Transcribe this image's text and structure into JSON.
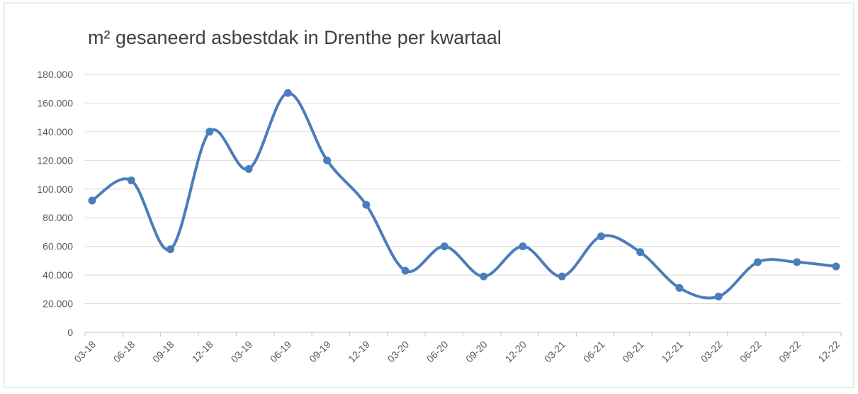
{
  "chart_data": {
    "type": "line",
    "title": "m² gesaneerd asbestdak in Drenthe per kwartaal",
    "categories": [
      "03-18",
      "06-18",
      "09-18",
      "12-18",
      "03-19",
      "06-19",
      "09-19",
      "12-19",
      "03-20",
      "06-20",
      "09-20",
      "12-20",
      "03-21",
      "06-21",
      "09-21",
      "12-21",
      "03-22",
      "06-22",
      "09-22",
      "12-22"
    ],
    "series": [
      {
        "name": "m² gesaneerd",
        "color": "#4a7ebb",
        "values": [
          92000,
          106000,
          58000,
          140000,
          114000,
          167000,
          120000,
          89000,
          43000,
          60000,
          39000,
          60000,
          39000,
          67000,
          56000,
          31000,
          25000,
          49000,
          49000,
          46000
        ]
      }
    ],
    "ylim": [
      0,
      180000
    ],
    "yticks": [
      0,
      {
        "value": 20000,
        "label": "20.000"
      },
      {
        "value": 40000,
        "label": "40.000"
      },
      {
        "value": 60000,
        "label": "60.000"
      },
      {
        "value": 80000,
        "label": "80.000"
      },
      {
        "value": 100000,
        "label": "100.000"
      },
      {
        "value": 120000,
        "label": "120.000"
      },
      {
        "value": 140000,
        "label": "140.000"
      },
      {
        "value": 160000,
        "label": "160.000"
      },
      {
        "value": 180000,
        "label": "180.000"
      }
    ],
    "grid": true,
    "smooth": true
  }
}
